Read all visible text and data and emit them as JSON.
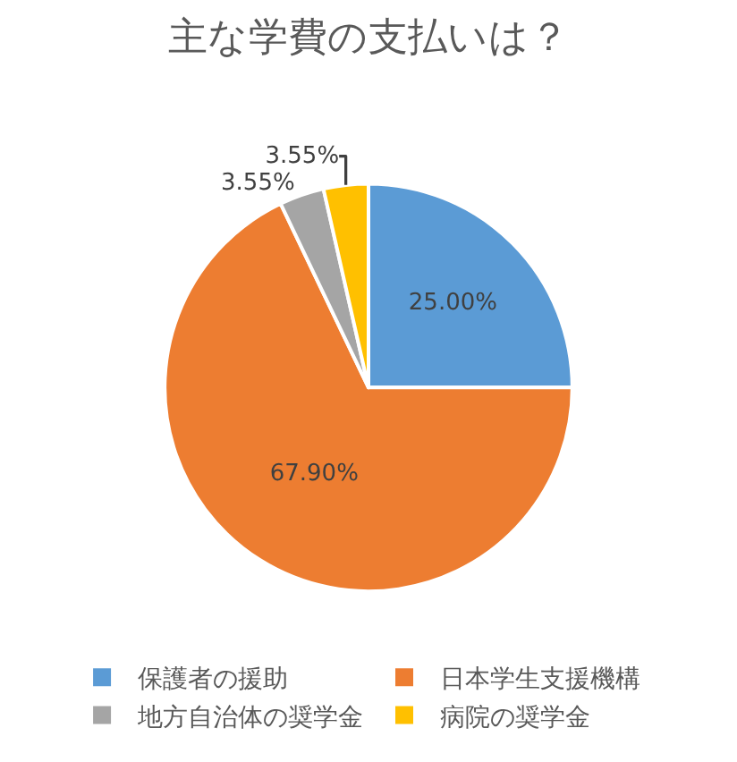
{
  "chart_data": {
    "type": "pie",
    "title": "主な学費の支払いは？",
    "categories": [
      "保護者の援助",
      "日本学生支援機構",
      "地方自治体の奨学金",
      "病院の奨学金"
    ],
    "values": [
      25.0,
      67.9,
      3.55,
      3.55
    ],
    "colors": [
      "#5b9bd5",
      "#ed7d31",
      "#a5a5a5",
      "#ffc000"
    ],
    "value_labels": [
      "25.00%",
      "67.90%",
      "3.55%",
      "3.55%"
    ],
    "legend": "bottom"
  }
}
